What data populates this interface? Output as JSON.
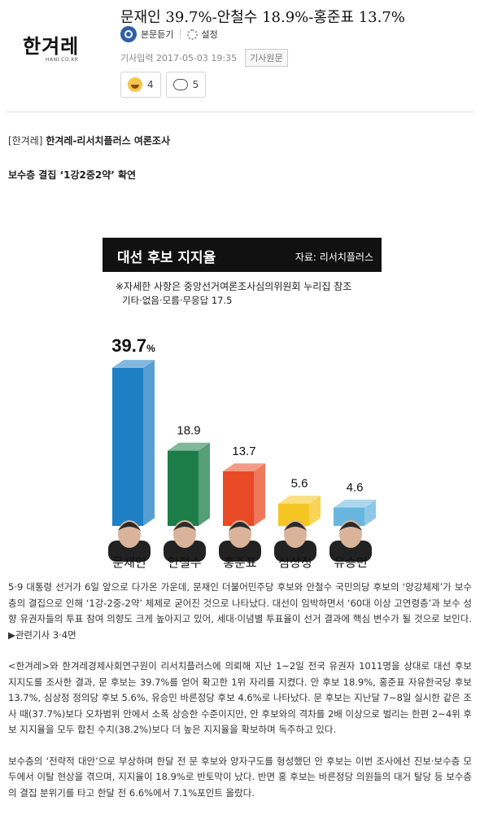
{
  "header": {
    "logo_text": "한겨레",
    "logo_sub": "HANI.CO.KR",
    "headline": "문재인 39.7%-안철수 18.9%-홍준표 13.7%",
    "listen_label": "본문듣기",
    "settings_label": "설정",
    "date_label": "기사입력 2017-05-03 19:35",
    "original_label": "기사원문",
    "like_count": "4",
    "comment_count": "5"
  },
  "article": {
    "source_prefix": "[한겨레]",
    "source_title": "한겨레-리서치플러스 여론조사",
    "subhead": "보수층 결집 ‘1강2중2약’ 확연",
    "paragraphs": [
      "5·9 대통령 선거가 6일 앞으로 다가온 가운데, 문재인 더불어민주당 후보와 안철수 국민의당 후보의 ‘양강체제’가 보수층의 결집으로 인해 ‘1강-2중-2약’ 체제로 굳어진 것으로 나타났다. 대선이 임박하면서 ‘60대 이상 고연령층’과 보수 성향 유권자들의 투표 참여 의향도 크게 높아지고 있어, 세대·이념별 투표율이 선거 결과에 핵심 변수가 될 것으로 보인다. ▶관련기사 3·4면",
      "<한겨레>와 한겨레경제사회연구원이 리서치플러스에 의뢰해 지난 1~2일 전국 유권자 1011명을 상대로 대선 후보 지지도를 조사한 결과, 문 후보는 39.7%를 얻어 확고한 1위 자리를 지켰다. 안 후보 18.9%, 홍준표 자유한국당 후보 13.7%, 심상정 정의당 후보 5.6%, 유승민 바른정당 후보 4.6%로 나타났다. 문 후보는 지난달 7~8일 실시한 같은 조사 때(37.7%)보다 오차범위 안에서 소폭 상승한 수준이지만, 안 후보와의 격차를 2배 이상으로 벌리는 한편 2~4위 후보 지지율을 모두 합친 수치(38.2%)보다 더 높은 지지율을 확보하며 독주하고 있다.",
      "보수층의 ‘전략적 대안’으로 부상하며 한달 전 문 후보와 양자구도를 형성했던 안 후보는 이번 조사에선 진보·보수층 모두에서 이탈 현상을 겪으며, 지지율이 18.9%로 반토막이 났다. 반면 홍 후보는 바른정당 의원들의 대거 탈당 등 보수층의 결집 분위기를 타고 한달 전 6.6%에서 7.1%포인트 올랐다."
    ]
  },
  "chart_data": {
    "type": "bar",
    "title": "대선 후보 지지율",
    "source": "자료: 리서치플러스",
    "note": "※자세한 사항은 중앙선거여론조사심의위원회 누리집 참조",
    "note2": "기타·없음·모름·무응답 17.5",
    "categories": [
      "문재인",
      "안철수",
      "홍준표",
      "심상정",
      "유승민"
    ],
    "values": [
      39.7,
      18.9,
      13.7,
      5.6,
      4.6
    ],
    "value_labels": [
      "39.7",
      "18.9",
      "13.7",
      "5.6",
      "4.6"
    ],
    "first_label_suffix": "%",
    "colors": [
      "#1f7fc4",
      "#1c7d48",
      "#e84a25",
      "#f5c522",
      "#68b6e0"
    ],
    "ylim": [
      0,
      45
    ]
  }
}
